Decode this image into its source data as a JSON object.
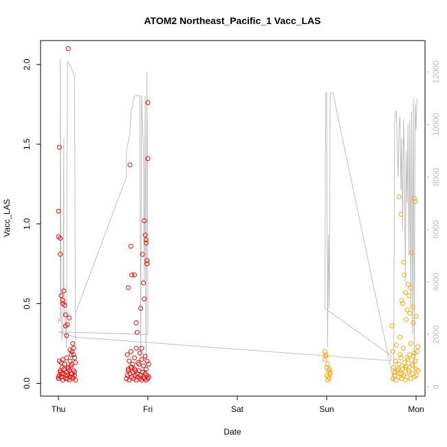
{
  "chart_data": {
    "type": "scatter",
    "title": "ATOM2 Northeast_Pacific_1 Vacc_LAS",
    "xlabel": "Date",
    "ylabel": "Vacc_LAS",
    "x_tick_labels": [
      "Thu",
      "Fri",
      "Sat",
      "Sun",
      "Mon"
    ],
    "xlim": [
      -0.2,
      4.1
    ],
    "ylim": [
      -0.08,
      2.15
    ],
    "y_ticks": [
      0.0,
      0.5,
      1.0,
      1.5,
      2.0
    ],
    "y_tick_labels": [
      "0.0",
      "0.5",
      "1.0",
      "1.5",
      "2.0"
    ],
    "y2lim": [
      -350,
      13200
    ],
    "y2_ticks": [
      0,
      2000,
      4000,
      6000,
      8000,
      10000,
      12000
    ],
    "y2_tick_labels": [
      "0",
      "2000",
      "4000",
      "6000",
      "8000",
      "10000",
      "12000"
    ],
    "grid": false,
    "colors": {
      "early": "#ff0000",
      "late": "#ffa500",
      "line": "#bebebe",
      "axis": "#000000",
      "right_axis": "#bdbdbd"
    },
    "series": [
      {
        "color": "#ff0000",
        "x": [
          0.0,
          0.01,
          0.02,
          0.03,
          0.04,
          0.05,
          0.06,
          0.07,
          0.08,
          0.09,
          0.1,
          0.11,
          0.12,
          0.13,
          0.14,
          0.15,
          0.16,
          0.17,
          0.18,
          0.19,
          0.01,
          0.03,
          0.05,
          0.07,
          0.09,
          0.11,
          0.13,
          0.15,
          0.17,
          0.19,
          0.0,
          0.02,
          0.04,
          0.06,
          0.08,
          0.1,
          0.12,
          0.14,
          0.16,
          0.18,
          0.0,
          0.0,
          0.01,
          0.02,
          0.02,
          0.03,
          0.05,
          0.05,
          0.06,
          0.07,
          0.08,
          0.08,
          0.09,
          0.1,
          0.11,
          0.12,
          0.13,
          0.14,
          0.15,
          0.16,
          0.17,
          0.18,
          0.76,
          0.77,
          0.78,
          0.79,
          0.8,
          0.81,
          0.82,
          0.83,
          0.84,
          0.85,
          0.86,
          0.87,
          0.88,
          0.89,
          0.9,
          0.91,
          0.92,
          0.93,
          0.94,
          0.95,
          0.96,
          0.97,
          0.98,
          0.99,
          1.0,
          1.01,
          0.77,
          0.79,
          0.81,
          0.83,
          0.85,
          0.87,
          0.89,
          0.91,
          0.93,
          0.95,
          0.97,
          0.99,
          1.01,
          0.78,
          0.82,
          0.86,
          0.9,
          0.94,
          0.98,
          0.78,
          0.8,
          0.81,
          0.82,
          0.85,
          0.87,
          0.88,
          0.92,
          0.93,
          0.95,
          0.96,
          0.97,
          0.98,
          0.98,
          0.99,
          0.99,
          1.0,
          1.0,
          0.96,
          0.94
        ],
        "y": [
          0.03,
          0.05,
          0.08,
          0.04,
          0.1,
          0.02,
          0.06,
          0.12,
          0.03,
          0.07,
          0.05,
          0.09,
          0.02,
          0.04,
          0.11,
          0.06,
          0.03,
          0.08,
          0.05,
          0.02,
          0.14,
          0.13,
          0.15,
          0.12,
          0.16,
          0.1,
          0.14,
          0.12,
          0.18,
          0.13,
          0.04,
          0.07,
          0.06,
          0.09,
          0.05,
          0.03,
          0.08,
          0.06,
          0.04,
          0.07,
          1.08,
          0.92,
          1.48,
          0.91,
          0.81,
          0.55,
          0.5,
          0.52,
          0.58,
          0.49,
          0.43,
          0.36,
          0.3,
          0.37,
          2.1,
          0.41,
          0.21,
          0.18,
          0.2,
          0.25,
          0.22,
          0.16,
          0.03,
          0.05,
          0.08,
          0.02,
          0.06,
          0.1,
          0.04,
          0.07,
          0.03,
          0.09,
          0.05,
          0.02,
          0.06,
          0.04,
          0.08,
          0.03,
          0.05,
          0.02,
          0.07,
          0.04,
          0.03,
          0.06,
          0.02,
          0.05,
          0.03,
          0.04,
          0.18,
          0.14,
          0.2,
          0.12,
          0.16,
          0.22,
          0.13,
          0.19,
          0.15,
          0.11,
          0.17,
          0.14,
          0.12,
          0.09,
          0.1,
          0.08,
          0.12,
          0.07,
          0.09,
          0.6,
          1.37,
          0.86,
          0.68,
          0.68,
          0.38,
          0.32,
          0.47,
          0.22,
          0.63,
          0.53,
          0.93,
          0.9,
          0.88,
          0.77,
          0.75,
          1.76,
          1.41,
          1.02,
          0.81
        ]
      },
      {
        "color": "#ffa500",
        "x": [
          2.98,
          2.99,
          3.0,
          3.01,
          3.02,
          3.03,
          3.04,
          2.98,
          3.0,
          3.02,
          3.04,
          2.99,
          3.01,
          3.03,
          3.74,
          3.76,
          3.78,
          3.8,
          3.82,
          3.84,
          3.86,
          3.88,
          3.9,
          3.92,
          3.94,
          3.96,
          3.98,
          4.0,
          4.02,
          3.75,
          3.77,
          3.79,
          3.81,
          3.83,
          3.85,
          3.87,
          3.89,
          3.91,
          3.93,
          3.95,
          3.97,
          3.99,
          4.01,
          3.74,
          3.78,
          3.82,
          3.86,
          3.9,
          3.94,
          3.98,
          4.02,
          3.76,
          3.8,
          3.84,
          3.88,
          3.92,
          3.96,
          4.0,
          3.73,
          3.81,
          3.82,
          3.83,
          3.84,
          3.85,
          3.86,
          3.87,
          3.88,
          3.89,
          3.9,
          3.91,
          3.92,
          3.93,
          3.94,
          3.95,
          3.96,
          3.97,
          3.98,
          3.99,
          4.0
        ],
        "y": [
          0.2,
          0.17,
          0.05,
          0.12,
          0.08,
          0.03,
          0.06,
          0.15,
          0.1,
          0.04,
          0.07,
          0.18,
          0.02,
          0.09,
          0.03,
          0.05,
          0.02,
          0.04,
          0.06,
          0.03,
          0.05,
          0.02,
          0.04,
          0.07,
          0.03,
          0.06,
          0.04,
          0.05,
          0.08,
          0.1,
          0.14,
          0.08,
          0.12,
          0.16,
          0.09,
          0.13,
          0.11,
          0.15,
          0.18,
          0.12,
          0.17,
          0.14,
          0.2,
          0.2,
          0.24,
          0.18,
          0.22,
          0.16,
          0.25,
          0.19,
          0.23,
          0.07,
          0.09,
          0.06,
          0.1,
          0.08,
          0.11,
          0.09,
          0.36,
          1.17,
          0.29,
          1.06,
          0.52,
          0.5,
          0.76,
          0.68,
          0.57,
          0.4,
          0.46,
          0.62,
          0.55,
          0.44,
          0.6,
          0.82,
          0.48,
          0.38,
          1.16,
          1.14,
          0.42
        ]
      }
    ],
    "line_series": {
      "color": "#bebebe",
      "axis": "right",
      "x": [
        0.0,
        0.0,
        0.02,
        0.02,
        0.03,
        0.04,
        0.05,
        0.06,
        0.06,
        0.07,
        0.08,
        0.09,
        0.1,
        0.11,
        0.12,
        0.14,
        0.15,
        0.16,
        0.17,
        0.18,
        0.19,
        0.19,
        0.76,
        0.76,
        0.79,
        0.8,
        0.81,
        0.83,
        0.84,
        0.86,
        0.88,
        0.89,
        0.9,
        0.91,
        0.92,
        0.93,
        0.95,
        0.96,
        0.97,
        0.98,
        0.99,
        1.0,
        1.0,
        0.0,
        0.19,
        3.72,
        3.72,
        2.98,
        2.99,
        3.0,
        3.01,
        3.02,
        3.03,
        3.04,
        3.05,
        3.06,
        3.07,
        3.07,
        3.75,
        3.76,
        3.77,
        3.78,
        3.79,
        3.8,
        3.81,
        3.82,
        3.83,
        3.84,
        3.85,
        3.86,
        3.87,
        3.88,
        3.89,
        3.9,
        3.91,
        3.92,
        3.93,
        3.94,
        3.95,
        3.96,
        3.97,
        3.98,
        3.99,
        4.0,
        4.01
      ],
      "y": [
        2400,
        2600,
        2500,
        12500,
        3000,
        1800,
        2200,
        9500,
        4000,
        2800,
        2100,
        1500,
        12300,
        12400,
        12300,
        12200,
        12100,
        12000,
        11900,
        11800,
        1800,
        2800,
        8000,
        9000,
        9500,
        9700,
        10500,
        10700,
        11000,
        11100,
        11100,
        11100,
        11100,
        11100,
        1000,
        11100,
        9000,
        4000,
        11100,
        500,
        12000,
        3800,
        2000,
        2100,
        1900,
        1000,
        1200,
        3000,
        11200,
        11200,
        1500,
        5800,
        3000,
        11200,
        11200,
        11200,
        11200,
        11200,
        200,
        10000,
        10500,
        10500,
        9000,
        8000,
        10000,
        10300,
        7500,
        9500,
        6000,
        10200,
        8500,
        4000,
        9000,
        7000,
        10000,
        5000,
        10200,
        3000,
        10500,
        2000,
        11000,
        500,
        10800,
        9800,
        11000
      ]
    }
  }
}
